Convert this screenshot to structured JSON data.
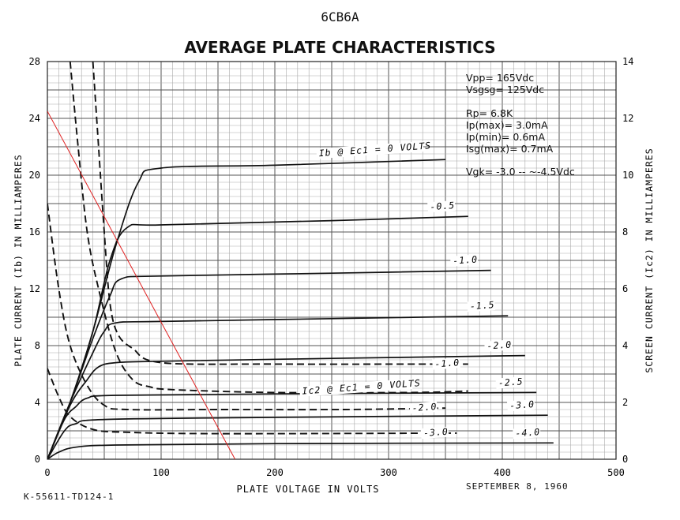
{
  "header": {
    "tube_type": "6CB6A",
    "title": "AVERAGE PLATE CHARACTERISTICS"
  },
  "specs": {
    "vpp": "Vpp=    165Vdc",
    "vsgsg": "Vsgsg= 125Vdc",
    "rp": "Rp=         6.8K",
    "ip_max": "Ip(max)=  3.0mA",
    "ip_min": "Ip(min)=    0.6mA",
    "isg_max": "Isg(max)= 0.7mA",
    "vgk": "Vgk= -3.0 -- ~-4.5Vdc"
  },
  "footer": {
    "drawing_no": "K-55611-TD124-1",
    "date": "SEPTEMBER 8, 1960"
  },
  "chart_data": {
    "type": "line",
    "title": "AVERAGE PLATE CHARACTERISTICS",
    "xlabel": "PLATE VOLTAGE IN VOLTS",
    "ylabel": "PLATE CURRENT (Ib) IN MILLIAMPERES",
    "ylabel2": "SCREEN CURRENT (Ic2) IN MILLIAMPERES",
    "xlim": [
      0,
      500
    ],
    "ylim": [
      0,
      28
    ],
    "y2lim": [
      0,
      14
    ],
    "x_ticks": [
      0,
      100,
      200,
      300,
      400,
      500
    ],
    "y_ticks": [
      0,
      4,
      8,
      12,
      16,
      20,
      24,
      28
    ],
    "y2_ticks": [
      0,
      2,
      4,
      6,
      8,
      10,
      12,
      14
    ],
    "grid": true,
    "plate_curves": [
      {
        "label": "Ib @ Ec1 = 0 VOLTS",
        "points": [
          [
            0,
            0
          ],
          [
            20,
            4
          ],
          [
            40,
            9
          ],
          [
            60,
            15
          ],
          [
            80,
            19.5
          ],
          [
            100,
            20.5
          ],
          [
            200,
            20.7
          ],
          [
            350,
            21.1
          ]
        ]
      },
      {
        "label": "-0.5",
        "points": [
          [
            0,
            0
          ],
          [
            20,
            4
          ],
          [
            40,
            9
          ],
          [
            55,
            14
          ],
          [
            70,
            16.3
          ],
          [
            100,
            16.5
          ],
          [
            250,
            16.8
          ],
          [
            370,
            17.1
          ]
        ]
      },
      {
        "label": "-1.0",
        "points": [
          [
            0,
            0
          ],
          [
            20,
            4
          ],
          [
            40,
            8.5
          ],
          [
            55,
            11.5
          ],
          [
            65,
            12.7
          ],
          [
            100,
            12.9
          ],
          [
            250,
            13.1
          ],
          [
            390,
            13.3
          ]
        ]
      },
      {
        "label": "-1.5",
        "points": [
          [
            0,
            0
          ],
          [
            20,
            4
          ],
          [
            40,
            7.5
          ],
          [
            50,
            9
          ],
          [
            60,
            9.6
          ],
          [
            100,
            9.7
          ],
          [
            250,
            9.9
          ],
          [
            405,
            10.1
          ]
        ]
      },
      {
        "label": "-2.0",
        "points": [
          [
            0,
            0
          ],
          [
            20,
            3.8
          ],
          [
            35,
            5.6
          ],
          [
            45,
            6.5
          ],
          [
            60,
            6.8
          ],
          [
            100,
            6.9
          ],
          [
            250,
            7.1
          ],
          [
            420,
            7.3
          ]
        ]
      },
      {
        "label": "-2.5",
        "points": [
          [
            0,
            0
          ],
          [
            15,
            2.8
          ],
          [
            25,
            3.7
          ],
          [
            35,
            4.3
          ],
          [
            60,
            4.5
          ],
          [
            200,
            4.6
          ],
          [
            430,
            4.7
          ]
        ]
      },
      {
        "label": "-3.0",
        "points": [
          [
            0,
            0
          ],
          [
            15,
            2
          ],
          [
            25,
            2.5
          ],
          [
            50,
            2.8
          ],
          [
            200,
            2.95
          ],
          [
            440,
            3.1
          ]
        ]
      },
      {
        "label": "-4.0",
        "points": [
          [
            0,
            0
          ],
          [
            10,
            0.5
          ],
          [
            25,
            0.85
          ],
          [
            60,
            1
          ],
          [
            200,
            1.1
          ],
          [
            445,
            1.15
          ]
        ]
      }
    ],
    "screen_curves": [
      {
        "label": "Ic2 @ Ec1 = 0 VOLTS",
        "points": [
          [
            20,
            14
          ],
          [
            27,
            11
          ],
          [
            35,
            8
          ],
          [
            45,
            6
          ],
          [
            60,
            3.8
          ],
          [
            75,
            2.8
          ],
          [
            90,
            2.55
          ],
          [
            110,
            2.45
          ],
          [
            200,
            2.35
          ],
          [
            320,
            2.35
          ],
          [
            370,
            2.4
          ]
        ]
      },
      {
        "label": "-1.0",
        "points": [
          [
            40,
            14
          ],
          [
            45,
            11
          ],
          [
            50,
            8
          ],
          [
            55,
            5.5
          ],
          [
            62,
            4.4
          ],
          [
            75,
            3.9
          ],
          [
            100,
            3.4
          ],
          [
            200,
            3.35
          ],
          [
            340,
            3.35
          ],
          [
            370,
            3.35
          ]
        ]
      },
      {
        "label": "-2.0",
        "points": [
          [
            0,
            9
          ],
          [
            10,
            6
          ],
          [
            20,
            4
          ],
          [
            35,
            2.6
          ],
          [
            50,
            1.9
          ],
          [
            70,
            1.75
          ],
          [
            150,
            1.75
          ],
          [
            260,
            1.75
          ],
          [
            350,
            1.8
          ]
        ]
      },
      {
        "label": "-3.0",
        "points": [
          [
            0,
            3.2
          ],
          [
            10,
            2.2
          ],
          [
            20,
            1.5
          ],
          [
            40,
            1.05
          ],
          [
            70,
            0.95
          ],
          [
            150,
            0.9
          ],
          [
            360,
            0.92
          ]
        ]
      }
    ],
    "load_line": {
      "color": "#e02020",
      "points": [
        [
          0,
          24.5
        ],
        [
          165,
          0
        ]
      ]
    }
  }
}
